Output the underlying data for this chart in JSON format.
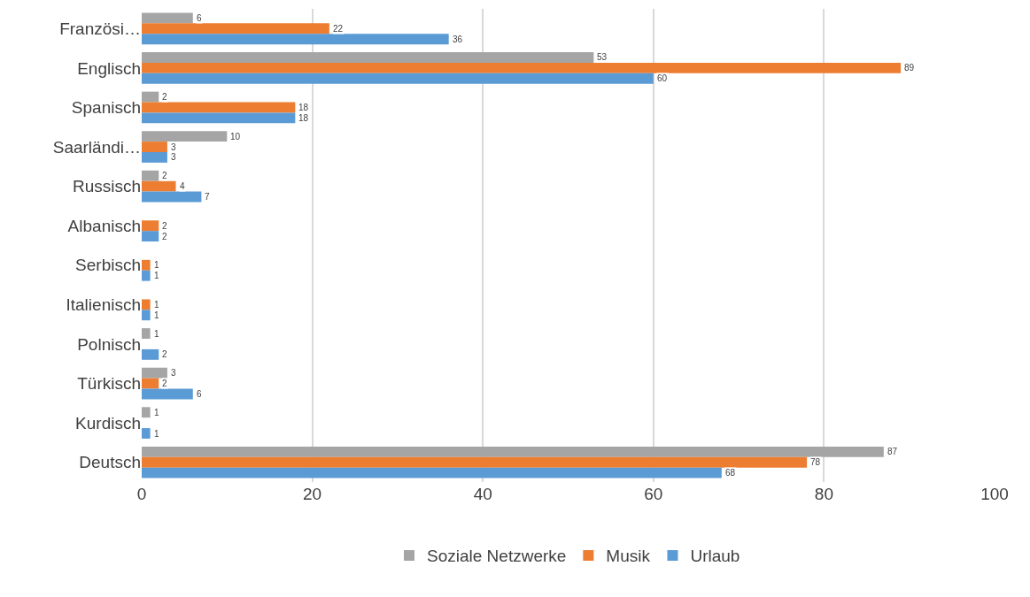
{
  "chart_data": {
    "type": "bar",
    "orientation": "horizontal",
    "categories": [
      "Französi…",
      "Englisch",
      "Spanisch",
      "Saarländi…",
      "Russisch",
      "Albanisch",
      "Serbisch",
      "Italienisch",
      "Polnisch",
      "Türkisch",
      "Kurdisch",
      "Deutsch"
    ],
    "series": [
      {
        "name": "Soziale Netzwerke",
        "color": "#a5a5a5",
        "values": [
          6,
          53,
          2,
          10,
          2,
          null,
          null,
          null,
          1,
          3,
          1,
          87
        ]
      },
      {
        "name": "Musik",
        "color": "#ed7d31",
        "values": [
          22,
          89,
          18,
          3,
          4,
          2,
          1,
          1,
          null,
          2,
          null,
          78
        ]
      },
      {
        "name": "Urlaub",
        "color": "#5b9bd5",
        "values": [
          36,
          60,
          18,
          3,
          7,
          2,
          1,
          1,
          2,
          6,
          1,
          68
        ]
      }
    ],
    "xlim": [
      0,
      100
    ],
    "xticks": [
      0,
      20,
      40,
      60,
      80,
      100
    ],
    "grid": "x",
    "legend": "bottom",
    "data_labels": true
  }
}
